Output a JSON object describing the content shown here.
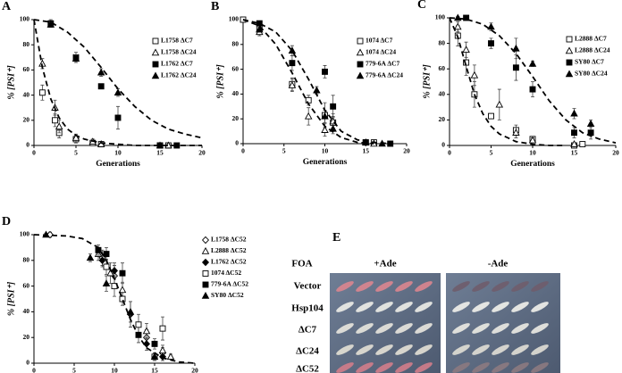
{
  "chart_data": [
    {
      "type": "scatter",
      "panel": "A",
      "y_label": "% [PSI⁺]",
      "x_label": "Generations",
      "xlim": [
        0,
        20
      ],
      "xticks": [
        0,
        5,
        10,
        15,
        20
      ],
      "ylim": [
        0,
        100
      ],
      "yticks": [
        0,
        20,
        40,
        60,
        80,
        100
      ],
      "grid": false,
      "legend": "upper right",
      "series": [
        {
          "name": "L1758 ΔC7",
          "color": "#000000",
          "marker": "square",
          "filled": false,
          "x": [
            1,
            2.5,
            3,
            5,
            7,
            8,
            15,
            16
          ],
          "values": [
            42,
            20,
            10,
            5,
            2,
            1,
            0,
            0
          ],
          "errors": [
            6,
            5,
            4,
            3,
            1,
            1,
            1,
            1
          ]
        },
        {
          "name": "L1758 ΔC24",
          "color": "#000000",
          "marker": "triangle",
          "filled": false,
          "x": [
            1,
            2.5,
            3,
            5,
            7,
            8,
            15,
            16
          ],
          "values": [
            65,
            30,
            15,
            6,
            3,
            1,
            0,
            0
          ],
          "errors": [
            4,
            6,
            5,
            3,
            2,
            1,
            1,
            1
          ]
        },
        {
          "name": "L1762 ΔC7",
          "color": "#000000",
          "marker": "square",
          "filled": true,
          "x": [
            2,
            5,
            8,
            10,
            15,
            17
          ],
          "values": [
            97,
            70,
            47,
            22,
            0,
            0
          ],
          "errors": [
            3,
            4,
            2,
            9,
            1,
            1
          ]
        },
        {
          "name": "L1762 ΔC24",
          "color": "#000000",
          "marker": "triangle",
          "filled": true,
          "x": [
            2,
            5,
            8,
            10
          ],
          "values": [
            96,
            69,
            58,
            42
          ],
          "errors": [
            2,
            3,
            3,
            3
          ]
        },
        {
          "color": "#000000",
          "marker": "none",
          "line": "dashed",
          "x": [
            0,
            1,
            2,
            3,
            4,
            5,
            6,
            8,
            10,
            12,
            15,
            20
          ],
          "values": [
            100,
            62,
            37,
            22,
            13,
            8,
            5,
            2,
            1,
            0,
            0,
            0
          ]
        },
        {
          "color": "#000000",
          "marker": "none",
          "line": "dashed",
          "x": [
            0,
            2,
            4,
            6,
            8,
            10,
            12,
            14,
            16,
            18,
            20
          ],
          "values": [
            100,
            98,
            90,
            78,
            62,
            45,
            31,
            20,
            13,
            9,
            6
          ]
        }
      ]
    },
    {
      "type": "scatter",
      "panel": "B",
      "y_label": "% [PSI⁺]",
      "x_label": "Generations",
      "xlim": [
        0,
        20
      ],
      "xticks": [
        0,
        5,
        10,
        15,
        20
      ],
      "ylim": [
        0,
        100
      ],
      "yticks": [
        0,
        20,
        40,
        60,
        80,
        100
      ],
      "grid": false,
      "legend": "upper right",
      "series": [
        {
          "name": "1074 ΔC7",
          "color": "#000000",
          "marker": "square",
          "filled": false,
          "x": [
            0,
            2,
            6,
            8,
            10,
            11,
            15,
            16
          ],
          "values": [
            100,
            93,
            48,
            35,
            23,
            17,
            1,
            1
          ],
          "errors": [
            1,
            3,
            5,
            4,
            10,
            5,
            1,
            1
          ]
        },
        {
          "name": "1074 ΔC24",
          "color": "#000000",
          "marker": "triangle",
          "filled": false,
          "x": [
            2,
            6,
            8,
            10,
            11,
            15,
            16
          ],
          "values": [
            90,
            47,
            22,
            11,
            18,
            1,
            0
          ],
          "errors": [
            3,
            5,
            7,
            5,
            6,
            1,
            1
          ]
        },
        {
          "name": "779-6A ΔC7",
          "color": "#000000",
          "marker": "square",
          "filled": true,
          "x": [
            2,
            6,
            10,
            11,
            15,
            18
          ],
          "values": [
            97,
            65,
            58,
            30,
            1,
            0
          ],
          "errors": [
            2,
            6,
            5,
            9,
            1,
            1
          ]
        },
        {
          "name": "779-6A ΔC24",
          "color": "#000000",
          "marker": "triangle",
          "filled": true,
          "x": [
            2,
            6,
            9,
            10,
            11,
            15,
            17
          ],
          "values": [
            92,
            75,
            43,
            22,
            12,
            1,
            0
          ],
          "errors": [
            2,
            4,
            3,
            5,
            4,
            1,
            1
          ]
        },
        {
          "color": "#000000",
          "marker": "none",
          "line": "dashed",
          "x": [
            0,
            2,
            4,
            6,
            8,
            10,
            12,
            14,
            16
          ],
          "values": [
            100,
            95,
            80,
            57,
            32,
            14,
            5,
            1,
            0
          ]
        },
        {
          "color": "#000000",
          "marker": "none",
          "line": "dashed",
          "x": [
            0,
            2,
            4,
            6,
            8,
            10,
            12,
            14,
            16,
            18
          ],
          "values": [
            100,
            97,
            90,
            75,
            52,
            27,
            10,
            3,
            1,
            0
          ]
        }
      ]
    },
    {
      "type": "scatter",
      "panel": "C",
      "y_label": "% [PSI⁺]",
      "x_label": "Generations",
      "xlim": [
        0,
        20
      ],
      "xticks": [
        0,
        5,
        10,
        15,
        20
      ],
      "ylim": [
        0,
        100
      ],
      "yticks": [
        0,
        20,
        40,
        60,
        80,
        100
      ],
      "grid": false,
      "legend": "upper right",
      "series": [
        {
          "name": "L2888 ΔC7",
          "color": "#000000",
          "marker": "square",
          "filled": false,
          "x": [
            1,
            2,
            3,
            5,
            8,
            10,
            15,
            16
          ],
          "values": [
            86,
            65,
            40,
            23,
            12,
            5,
            0,
            1
          ],
          "errors": [
            8,
            10,
            10,
            2,
            4,
            2,
            1,
            1
          ]
        },
        {
          "name": "L2888 ΔC24",
          "color": "#000000",
          "marker": "triangle",
          "filled": false,
          "x": [
            1,
            2,
            3,
            6,
            8,
            10,
            15
          ],
          "values": [
            93,
            75,
            55,
            32,
            10,
            4,
            1
          ],
          "errors": [
            4,
            6,
            8,
            12,
            4,
            2,
            1
          ]
        },
        {
          "name": "SY80 ΔC7",
          "color": "#000000",
          "marker": "square",
          "filled": true,
          "x": [
            2,
            5,
            8,
            10,
            15,
            17
          ],
          "values": [
            100,
            80,
            61,
            44,
            10,
            10
          ],
          "errors": [
            1,
            4,
            10,
            6,
            4,
            5
          ]
        },
        {
          "name": "SY80 ΔC24",
          "color": "#000000",
          "marker": "triangle",
          "filled": true,
          "x": [
            1,
            5,
            8,
            10,
            15,
            17
          ],
          "values": [
            100,
            93,
            76,
            64,
            25,
            17
          ],
          "errors": [
            1,
            3,
            8,
            2,
            4,
            3
          ]
        },
        {
          "color": "#000000",
          "marker": "none",
          "line": "dashed",
          "x": [
            0,
            1,
            2,
            3,
            4,
            5,
            6,
            8,
            10,
            12,
            14
          ],
          "values": [
            100,
            85,
            62,
            40,
            25,
            15,
            9,
            3,
            1,
            0,
            0
          ]
        },
        {
          "color": "#000000",
          "marker": "none",
          "line": "dashed",
          "x": [
            0,
            2,
            4,
            6,
            8,
            10,
            12,
            14,
            16,
            18,
            20
          ],
          "values": [
            100,
            99,
            95,
            86,
            72,
            54,
            35,
            20,
            10,
            5,
            2
          ]
        }
      ]
    },
    {
      "type": "scatter",
      "panel": "D",
      "y_label": "% [PSI⁺]",
      "x_label": "Generations",
      "xlim": [
        0,
        20
      ],
      "xticks": [
        0,
        5,
        10,
        15,
        20
      ],
      "ylim": [
        0,
        100
      ],
      "yticks": [
        0,
        20,
        40,
        60,
        80,
        100
      ],
      "grid": false,
      "legend": "outside right",
      "series": [
        {
          "name": "L1758 ΔC52",
          "color": "#000000",
          "marker": "diamond",
          "filled": false,
          "x": [
            2,
            8.5,
            10,
            14,
            16
          ],
          "values": [
            100,
            82,
            68,
            20,
            8
          ],
          "errors": [
            2,
            6,
            8,
            6,
            4
          ]
        },
        {
          "name": "L2888 ΔC52",
          "color": "#000000",
          "marker": "triangle",
          "filled": false,
          "x": [
            8,
            9.5,
            11,
            14,
            16,
            17
          ],
          "values": [
            85,
            70,
            57,
            25,
            10,
            5
          ],
          "errors": [
            5,
            8,
            6,
            6,
            4,
            2
          ]
        },
        {
          "name": "L1762 ΔC52",
          "color": "#000000",
          "marker": "diamond",
          "filled": true,
          "x": [
            8.5,
            10,
            12,
            14,
            16
          ],
          "values": [
            80,
            72,
            38,
            15,
            5
          ],
          "errors": [
            5,
            6,
            10,
            5,
            3
          ]
        },
        {
          "name": "1074 ΔC52",
          "color": "#000000",
          "marker": "square",
          "filled": false,
          "x": [
            9,
            10,
            11,
            13,
            15,
            16
          ],
          "values": [
            75,
            60,
            50,
            30,
            5,
            27
          ],
          "errors": [
            6,
            8,
            5,
            8,
            3,
            9
          ]
        },
        {
          "name": "779-6A ΔC52",
          "color": "#000000",
          "marker": "square",
          "filled": true,
          "x": [
            8,
            9,
            11,
            13,
            15
          ],
          "values": [
            88,
            85,
            70,
            22,
            15
          ],
          "errors": [
            4,
            5,
            8,
            6,
            4
          ]
        },
        {
          "name": "SY80 ΔC52",
          "color": "#000000",
          "marker": "triangle",
          "filled": true,
          "x": [
            1.5,
            7,
            9,
            12,
            15
          ],
          "values": [
            100,
            82,
            62,
            40,
            5
          ],
          "errors": [
            1,
            3,
            6,
            8,
            3
          ]
        },
        {
          "color": "#000000",
          "marker": "none",
          "line": "dashed",
          "x": [
            0,
            4,
            6,
            8,
            9,
            10,
            11,
            12,
            13,
            14,
            16,
            18,
            20
          ],
          "values": [
            100,
            99,
            97,
            90,
            80,
            66,
            50,
            34,
            21,
            12,
            4,
            1,
            0
          ]
        }
      ]
    }
  ],
  "panel_e": {
    "panel": "E",
    "header": "FOA",
    "columns": [
      "+Ade",
      "-Ade"
    ],
    "rows": [
      "Vector",
      "Hsp104",
      "ΔC7",
      "ΔC24",
      "ΔC52"
    ]
  }
}
